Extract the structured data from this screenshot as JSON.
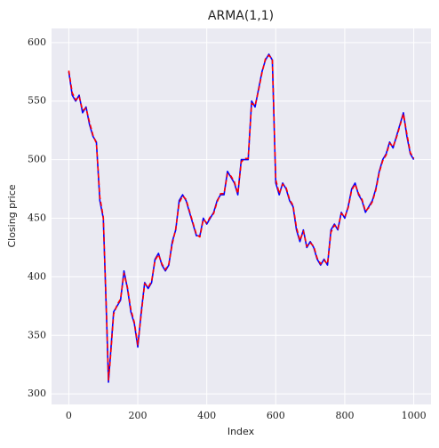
{
  "chart_data": {
    "type": "line",
    "title": "ARMA(1,1)",
    "xlabel": "Index",
    "ylabel": "Closing price",
    "x": [
      0,
      10,
      20,
      30,
      40,
      50,
      60,
      70,
      80,
      90,
      100,
      110,
      115,
      120,
      130,
      140,
      150,
      160,
      170,
      180,
      190,
      200,
      210,
      220,
      230,
      240,
      250,
      260,
      270,
      280,
      290,
      300,
      310,
      320,
      330,
      340,
      350,
      360,
      370,
      380,
      390,
      400,
      410,
      420,
      430,
      440,
      450,
      460,
      470,
      480,
      490,
      500,
      510,
      520,
      530,
      540,
      550,
      560,
      570,
      580,
      590,
      600,
      610,
      620,
      630,
      640,
      650,
      660,
      670,
      680,
      690,
      700,
      710,
      720,
      730,
      740,
      750,
      760,
      770,
      780,
      790,
      800,
      810,
      820,
      830,
      840,
      850,
      860,
      870,
      880,
      890,
      900,
      910,
      920,
      930,
      940,
      950,
      960,
      970,
      980,
      990,
      1000
    ],
    "series": [
      {
        "color": "#0000ff",
        "style": "solid",
        "values": [
          575,
          555,
          550,
          555,
          540,
          545,
          530,
          520,
          515,
          465,
          450,
          360,
          310,
          330,
          370,
          375,
          380,
          405,
          390,
          370,
          360,
          340,
          370,
          395,
          390,
          395,
          415,
          420,
          410,
          405,
          410,
          430,
          440,
          465,
          470,
          465,
          455,
          445,
          435,
          435,
          450,
          445,
          450,
          455,
          465,
          470,
          470,
          490,
          485,
          480,
          470,
          500,
          500,
          500,
          550,
          545,
          560,
          575,
          585,
          590,
          585,
          480,
          470,
          480,
          475,
          465,
          460,
          440,
          430,
          440,
          425,
          430,
          425,
          415,
          410,
          415,
          410,
          440,
          445,
          440,
          455,
          450,
          460,
          475,
          480,
          470,
          465,
          455,
          460,
          465,
          475,
          490,
          500,
          505,
          515,
          510,
          520,
          530,
          540,
          520,
          505,
          500
        ]
      },
      {
        "color": "#ff0000",
        "style": "dashed",
        "values": [
          576,
          557,
          551,
          554,
          542,
          544,
          532,
          521,
          514,
          468,
          451,
          362,
          312,
          328,
          368,
          376,
          381,
          403,
          391,
          372,
          361,
          342,
          368,
          394,
          391,
          396,
          414,
          419,
          411,
          406,
          411,
          428,
          441,
          463,
          469,
          466,
          456,
          446,
          436,
          434,
          449,
          446,
          451,
          454,
          464,
          471,
          471,
          488,
          486,
          481,
          471,
          498,
          501,
          501,
          548,
          546,
          559,
          574,
          586,
          589,
          586,
          483,
          471,
          479,
          476,
          466,
          461,
          442,
          431,
          439,
          426,
          429,
          426,
          416,
          411,
          414,
          411,
          438,
          444,
          441,
          454,
          451,
          459,
          474,
          479,
          471,
          466,
          456,
          459,
          464,
          474,
          489,
          499,
          504,
          514,
          511,
          519,
          529,
          539,
          522,
          506,
          501
        ]
      }
    ],
    "xlim": [
      -50,
      1050
    ],
    "ylim": [
      291,
      612
    ],
    "xticks": [
      0,
      200,
      400,
      600,
      800,
      1000
    ],
    "yticks": [
      300,
      350,
      400,
      450,
      500,
      550,
      600
    ],
    "grid": true
  }
}
